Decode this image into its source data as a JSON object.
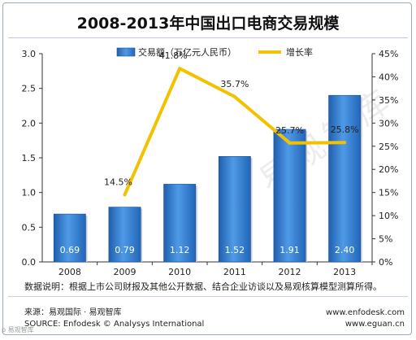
{
  "chart_data": {
    "type": "bar",
    "title": "2008-2013年中国出口电商交易规模",
    "categories": [
      "2008",
      "2009",
      "2010",
      "2011",
      "2012",
      "2013"
    ],
    "series": [
      {
        "name": "交易额（万亿元人民币）",
        "type": "bar",
        "axis": "left",
        "color": "#2f7fd0",
        "values": [
          0.69,
          0.79,
          1.12,
          1.52,
          1.91,
          2.4
        ],
        "labels": [
          "0.69",
          "0.79",
          "1.12",
          "1.52",
          "1.91",
          "2.40"
        ]
      },
      {
        "name": "增长率",
        "type": "line",
        "axis": "right",
        "color": "#f2c200",
        "values": [
          null,
          14.5,
          41.8,
          35.7,
          25.7,
          25.8
        ],
        "labels": [
          "",
          "14.5%",
          "41.8%",
          "35.7%",
          "25.7%",
          "25.8%"
        ]
      }
    ],
    "y_left": {
      "min": 0,
      "max": 3.0,
      "ticks": [
        "0.0",
        "0.5",
        "1.0",
        "1.5",
        "2.0",
        "2.5",
        "3.0"
      ]
    },
    "y_right": {
      "min": 0,
      "max": 45,
      "ticks": [
        "0%",
        "5%",
        "10%",
        "15%",
        "20%",
        "25%",
        "30%",
        "35%",
        "40%",
        "45%"
      ]
    },
    "legend_position": "top",
    "grid": false
  },
  "note": "数据说明：根据上市公司财报及其他公开数据、结合企业访谈以及易观核算模型测算所得。",
  "source": {
    "label": "来源：易观国际 · 易观智库",
    "copyright": "SOURCE: Enfodesk © Analysys International",
    "url1": "www.enfodesk.com",
    "url2": "www.eguan.cn"
  },
  "watermark": "易观智库",
  "corner_mark": "p 易观智库"
}
